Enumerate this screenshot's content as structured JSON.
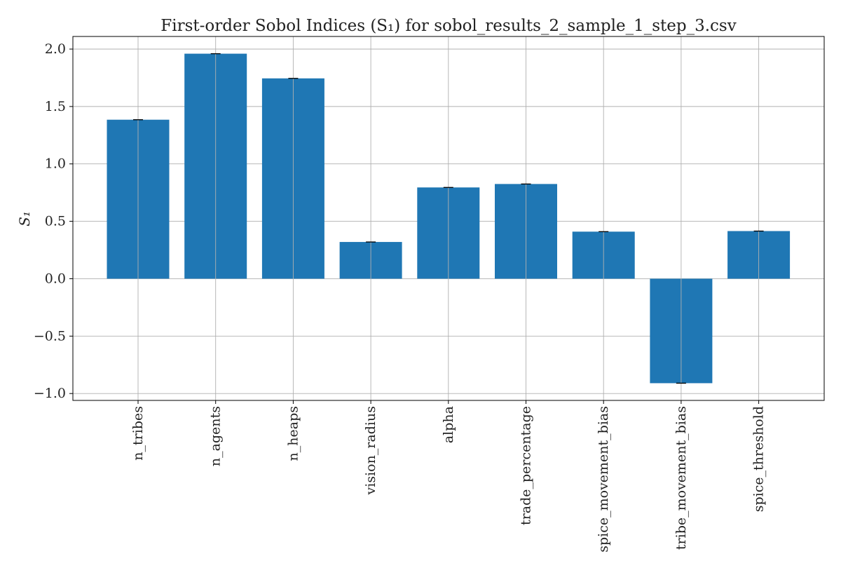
{
  "chart_data": {
    "type": "bar",
    "title": "First-order Sobol Indices (S₁) for sobol_results_2_sample_1_step_3.csv",
    "xlabel": "",
    "ylabel": "S₁",
    "categories": [
      "n_tribes",
      "n_agents",
      "n_heaps",
      "vision_radius",
      "alpha",
      "trade_percentage",
      "spice_movement_bias",
      "tribe_movement_bias",
      "spice_threshold"
    ],
    "values": [
      1.385,
      1.96,
      1.745,
      0.32,
      0.795,
      0.825,
      0.41,
      -0.91,
      0.415
    ],
    "yticks": [
      -1.0,
      -0.5,
      0.0,
      0.5,
      1.0,
      1.5,
      2.0
    ],
    "ytick_labels": [
      "−1.0",
      "−0.5",
      "0.0",
      "0.5",
      "1.0",
      "1.5",
      "2.0"
    ],
    "ylim": [
      -1.06,
      2.11
    ],
    "grid": true,
    "error_bars": true,
    "colors": {
      "bar": "#1f77b4",
      "grid": "#b0b0b0",
      "axis": "#000000",
      "errorbar": "#000000"
    }
  }
}
